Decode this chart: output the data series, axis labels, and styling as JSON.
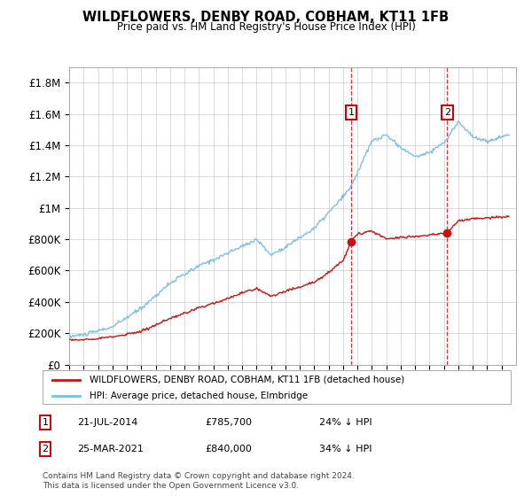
{
  "title": "WILDFLOWERS, DENBY ROAD, COBHAM, KT11 1FB",
  "subtitle": "Price paid vs. HM Land Registry's House Price Index (HPI)",
  "hpi_label": "HPI: Average price, detached house, Elmbridge",
  "property_label": "WILDFLOWERS, DENBY ROAD, COBHAM, KT11 1FB (detached house)",
  "footer": "Contains HM Land Registry data © Crown copyright and database right 2024.\nThis data is licensed under the Open Government Licence v3.0.",
  "sale1_date": "21-JUL-2014",
  "sale1_price": 785700,
  "sale1_discount": "24% ↓ HPI",
  "sale1_label": "1",
  "sale2_date": "25-MAR-2021",
  "sale2_price": 840000,
  "sale2_discount": "34% ↓ HPI",
  "sale2_label": "2",
  "hpi_color": "#7bbfe8",
  "property_color": "#cc1111",
  "vline_color": "#cc1111",
  "bg_color": "#ffffff",
  "grid_color": "#cccccc",
  "ylim": [
    0,
    1900000
  ],
  "yticks": [
    0,
    200000,
    400000,
    600000,
    800000,
    1000000,
    1200000,
    1400000,
    1600000,
    1800000
  ],
  "ytick_labels": [
    "£0",
    "£200K",
    "£400K",
    "£600K",
    "£800K",
    "£1M",
    "£1.2M",
    "£1.4M",
    "£1.6M",
    "£1.8M"
  ],
  "year_start": 1995,
  "year_end": 2025
}
